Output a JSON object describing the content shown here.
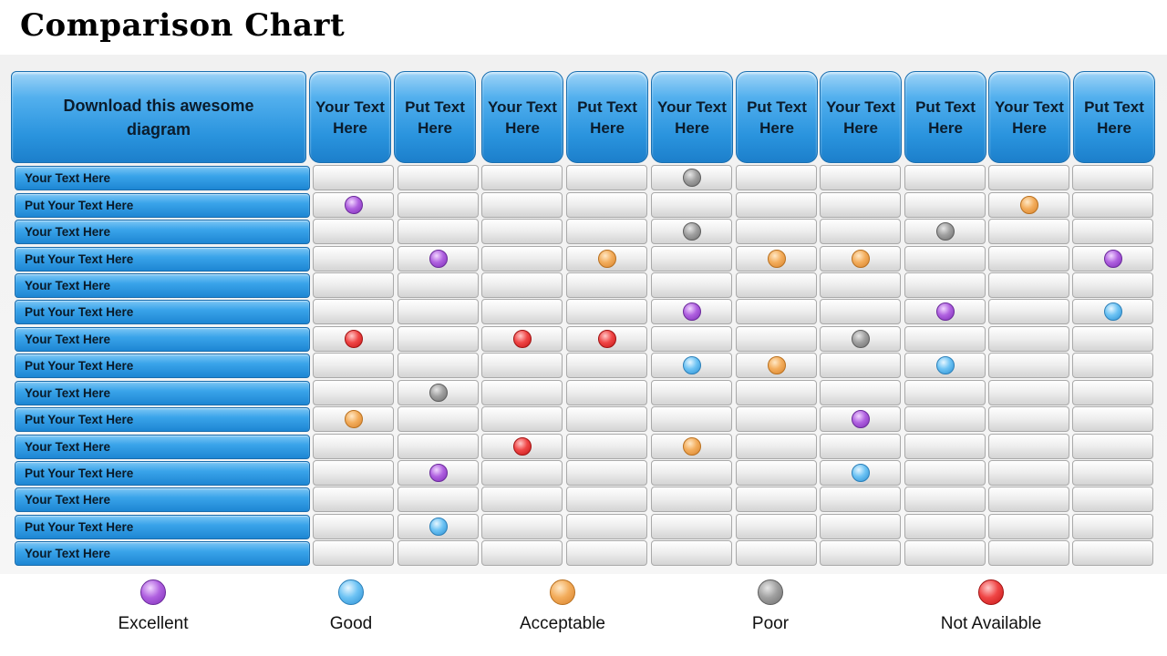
{
  "title": "Comparison Chart",
  "header_main": "Download  this awesome diagram",
  "column_headers": [
    "Your Text Here",
    "Put Text Here",
    "Your Text Here",
    "Put Text Here",
    "Your Text Here",
    "Put Text Here",
    "Your Text Here",
    "Put Text Here",
    "Your Text Here",
    "Put Text Here"
  ],
  "row_labels": [
    "Your Text Here",
    "Put Your Text Here",
    "Your Text Here",
    "Put Your Text Here",
    "Your Text Here",
    "Put Your Text Here",
    "Your Text Here",
    "Put Your Text Here",
    "Your Text Here",
    "Put Your Text Here",
    "Your Text Here",
    "Put Your Text Here",
    "Your Text Here",
    "Put Your Text Here",
    "Your Text Here"
  ],
  "ratings": [
    [
      null,
      null,
      null,
      null,
      "Poor",
      null,
      null,
      null,
      null,
      null
    ],
    [
      "Excellent",
      null,
      null,
      null,
      null,
      null,
      null,
      null,
      "Acceptable",
      null
    ],
    [
      null,
      null,
      null,
      null,
      "Poor",
      null,
      null,
      "Poor",
      null,
      null
    ],
    [
      null,
      "Excellent",
      null,
      "Acceptable",
      null,
      "Acceptable",
      "Acceptable",
      null,
      null,
      "Excellent"
    ],
    [
      null,
      null,
      null,
      null,
      null,
      null,
      null,
      null,
      null,
      null
    ],
    [
      null,
      null,
      null,
      null,
      "Excellent",
      null,
      null,
      "Excellent",
      null,
      "Good"
    ],
    [
      "Not Available",
      null,
      "Not Available",
      "Not Available",
      null,
      null,
      "Poor",
      null,
      null,
      null
    ],
    [
      null,
      null,
      null,
      null,
      "Good",
      "Acceptable",
      null,
      "Good",
      null,
      null
    ],
    [
      null,
      "Poor",
      null,
      null,
      null,
      null,
      null,
      null,
      null,
      null
    ],
    [
      "Acceptable",
      null,
      null,
      null,
      null,
      null,
      "Excellent",
      null,
      null,
      null
    ],
    [
      null,
      null,
      "Not Available",
      null,
      "Acceptable",
      null,
      null,
      null,
      null,
      null
    ],
    [
      null,
      "Excellent",
      null,
      null,
      null,
      null,
      "Good",
      null,
      null,
      null
    ],
    [
      null,
      null,
      null,
      null,
      null,
      null,
      null,
      null,
      null,
      null
    ],
    [
      null,
      "Good",
      null,
      null,
      null,
      null,
      null,
      null,
      null,
      null
    ],
    [
      null,
      null,
      null,
      null,
      null,
      null,
      null,
      null,
      null,
      null
    ]
  ],
  "legend": [
    {
      "label": "Excellent",
      "color": "#a855dc"
    },
    {
      "label": "Good",
      "color": "#5ab8f0"
    },
    {
      "label": "Acceptable",
      "color": "#eea050"
    },
    {
      "label": "Poor",
      "color": "#8e8e8e"
    },
    {
      "label": "Not Available",
      "color": "#ea3434"
    }
  ]
}
